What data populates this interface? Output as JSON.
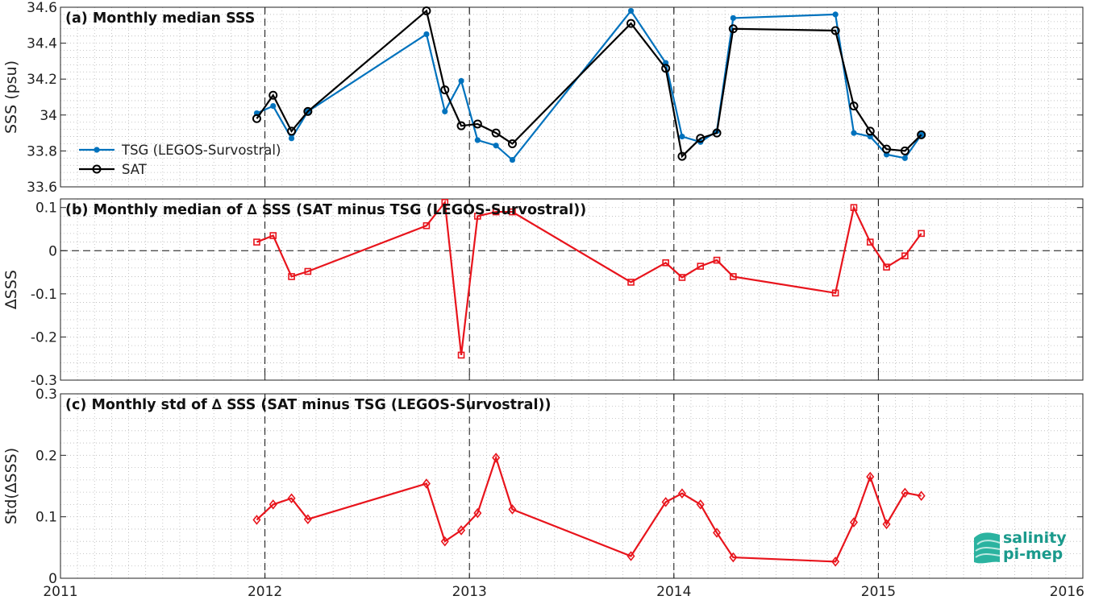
{
  "colors": {
    "tsg": "#0072BD",
    "sat": "#000000",
    "delta": "#E8141C",
    "grid": "#b8b8b8",
    "logo": "#1a9a8c"
  },
  "logo": {
    "line1": "salinity",
    "line2": "pi-mep",
    "icon": "wave-logo-icon"
  },
  "chart_data": [
    {
      "type": "line",
      "title": "(a) Monthly median SSS",
      "xlabel": "",
      "ylabel": "SSS (psu)",
      "xlim": [
        2011,
        2016
      ],
      "ylim": [
        33.6,
        34.6
      ],
      "x_ticks": [
        "2011",
        "2012",
        "2013",
        "2014",
        "2015",
        "2016"
      ],
      "y_ticks": [
        "33.6",
        "33.8",
        "34",
        "34.2",
        "34.4",
        "34.6"
      ],
      "grid": true,
      "legend": "left",
      "series": [
        {
          "name": "TSG (LEGOS-Survostral)",
          "x": [
            2011.96,
            2012.04,
            2012.13,
            2012.21,
            2012.79,
            2012.88,
            2012.96,
            2013.04,
            2013.13,
            2013.21,
            2013.79,
            2013.96,
            2014.04,
            2014.13,
            2014.21,
            2014.29,
            2014.79,
            2014.88,
            2014.96,
            2015.04,
            2015.13,
            2015.21
          ],
          "y": [
            34.01,
            34.05,
            33.87,
            34.02,
            34.45,
            34.02,
            34.19,
            33.86,
            33.83,
            33.75,
            34.58,
            34.29,
            33.88,
            33.85,
            33.91,
            34.54,
            34.56,
            33.9,
            33.88,
            33.78,
            33.76,
            33.89
          ]
        },
        {
          "name": "SAT",
          "x": [
            2011.96,
            2012.04,
            2012.13,
            2012.21,
            2012.79,
            2012.88,
            2012.96,
            2013.04,
            2013.13,
            2013.21,
            2013.79,
            2013.96,
            2014.04,
            2014.13,
            2014.21,
            2014.29,
            2014.79,
            2014.88,
            2014.96,
            2015.04,
            2015.13,
            2015.21
          ],
          "y": [
            33.98,
            34.11,
            33.91,
            34.02,
            34.58,
            34.14,
            33.94,
            33.95,
            33.9,
            33.84,
            34.51,
            34.26,
            33.77,
            33.87,
            33.9,
            34.48,
            34.47,
            34.05,
            33.91,
            33.81,
            33.8,
            33.89
          ]
        }
      ]
    },
    {
      "type": "line",
      "title": "(b) Monthly median of ∆ SSS (SAT minus TSG (LEGOS-Survostral))",
      "xlabel": "",
      "ylabel": "∆SSS",
      "xlim": [
        2011,
        2016
      ],
      "ylim": [
        -0.3,
        0.12
      ],
      "x_ticks": [
        "2011",
        "2012",
        "2013",
        "2014",
        "2015",
        "2016"
      ],
      "y_ticks": [
        "-0.3",
        "-0.2",
        "-0.1",
        "0",
        "0.1"
      ],
      "grid": true,
      "series": [
        {
          "name": "",
          "x": [
            2011.96,
            2012.04,
            2012.13,
            2012.21,
            2012.79,
            2012.88,
            2012.96,
            2013.04,
            2013.13,
            2013.21,
            2013.79,
            2013.96,
            2014.04,
            2014.13,
            2014.21,
            2014.29,
            2014.79,
            2014.88,
            2014.96,
            2015.04,
            2015.13,
            2015.21
          ],
          "y": [
            0.02,
            0.035,
            -0.06,
            -0.048,
            0.058,
            0.112,
            -0.242,
            0.08,
            0.09,
            0.09,
            -0.073,
            -0.028,
            -0.062,
            -0.036,
            -0.022,
            -0.06,
            -0.098,
            0.1,
            0.02,
            -0.038,
            -0.012,
            0.04
          ]
        }
      ]
    },
    {
      "type": "line",
      "title": "(c) Monthly std of ∆ SSS (SAT minus TSG (LEGOS-Survostral))",
      "xlabel": "",
      "ylabel": "Std(∆SSS)",
      "xlim": [
        2011,
        2016
      ],
      "ylim": [
        0,
        0.3
      ],
      "x_ticks": [
        "2011",
        "2012",
        "2013",
        "2014",
        "2015",
        "2016"
      ],
      "y_ticks": [
        "0",
        "0.1",
        "0.2",
        "0.3"
      ],
      "grid": true,
      "series": [
        {
          "name": "",
          "x": [
            2011.96,
            2012.04,
            2012.13,
            2012.21,
            2012.79,
            2012.88,
            2012.96,
            2013.04,
            2013.13,
            2013.21,
            2013.79,
            2013.96,
            2014.04,
            2014.13,
            2014.21,
            2014.29,
            2014.79,
            2014.88,
            2014.96,
            2015.04,
            2015.13,
            2015.21
          ],
          "y": [
            0.095,
            0.12,
            0.13,
            0.096,
            0.154,
            0.06,
            0.078,
            0.106,
            0.196,
            0.112,
            0.036,
            0.124,
            0.138,
            0.12,
            0.074,
            0.034,
            0.027,
            0.091,
            0.165,
            0.088,
            0.139,
            0.134
          ]
        }
      ]
    }
  ]
}
